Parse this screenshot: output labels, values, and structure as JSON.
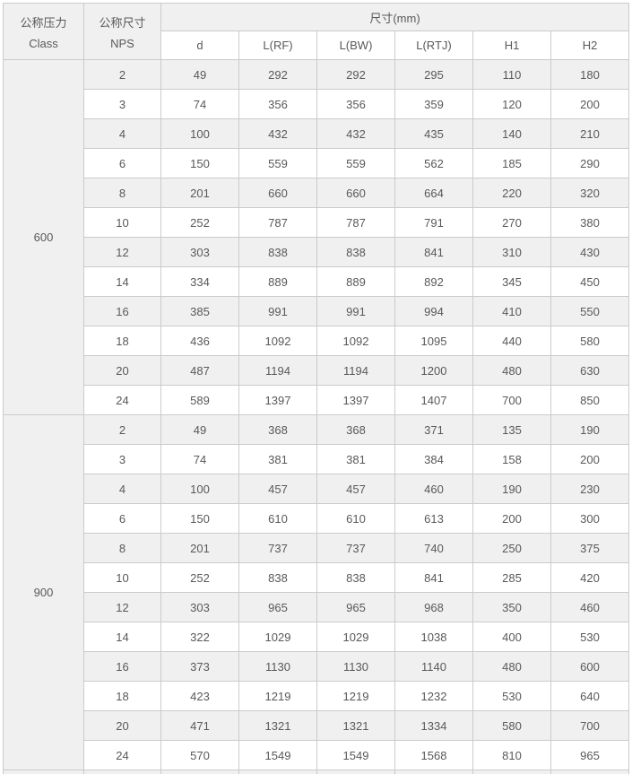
{
  "colors": {
    "header_bg": "#f0f0f0",
    "stripe_bg": "#f0f0f0",
    "inner_border": "#cbcbcb",
    "outer_border": "#a8a8a8",
    "text": "#58595b"
  },
  "table": {
    "header": {
      "pressure_cn": "公称压力",
      "pressure_en": "Class",
      "size_cn": "公称尺寸",
      "size_en": "NPS",
      "dims_title": "尺寸(mm)",
      "sub_columns": [
        "d",
        "L(RF)",
        "L(BW)",
        "L(RTJ)",
        "H1",
        "H2"
      ]
    },
    "sections": [
      {
        "class_label": "600",
        "rows": [
          [
            "2",
            "49",
            "292",
            "292",
            "295",
            "110",
            "180"
          ],
          [
            "3",
            "74",
            "356",
            "356",
            "359",
            "120",
            "200"
          ],
          [
            "4",
            "100",
            "432",
            "432",
            "435",
            "140",
            "210"
          ],
          [
            "6",
            "150",
            "559",
            "559",
            "562",
            "185",
            "290"
          ],
          [
            "8",
            "201",
            "660",
            "660",
            "664",
            "220",
            "320"
          ],
          [
            "10",
            "252",
            "787",
            "787",
            "791",
            "270",
            "380"
          ],
          [
            "12",
            "303",
            "838",
            "838",
            "841",
            "310",
            "430"
          ],
          [
            "14",
            "334",
            "889",
            "889",
            "892",
            "345",
            "450"
          ],
          [
            "16",
            "385",
            "991",
            "991",
            "994",
            "410",
            "550"
          ],
          [
            "18",
            "436",
            "1092",
            "1092",
            "1095",
            "440",
            "580"
          ],
          [
            "20",
            "487",
            "1194",
            "1194",
            "1200",
            "480",
            "630"
          ],
          [
            "24",
            "589",
            "1397",
            "1397",
            "1407",
            "700",
            "850"
          ]
        ]
      },
      {
        "class_label": "900",
        "rows": [
          [
            "2",
            "49",
            "368",
            "368",
            "371",
            "135",
            "190"
          ],
          [
            "3",
            "74",
            "381",
            "381",
            "384",
            "158",
            "200"
          ],
          [
            "4",
            "100",
            "457",
            "457",
            "460",
            "190",
            "230"
          ],
          [
            "6",
            "150",
            "610",
            "610",
            "613",
            "200",
            "300"
          ],
          [
            "8",
            "201",
            "737",
            "737",
            "740",
            "250",
            "375"
          ],
          [
            "10",
            "252",
            "838",
            "838",
            "841",
            "285",
            "420"
          ],
          [
            "12",
            "303",
            "965",
            "965",
            "968",
            "350",
            "460"
          ],
          [
            "14",
            "322",
            "1029",
            "1029",
            "1038",
            "400",
            "530"
          ],
          [
            "16",
            "373",
            "1130",
            "1130",
            "1140",
            "480",
            "600"
          ],
          [
            "18",
            "423",
            "1219",
            "1219",
            "1232",
            "530",
            "640"
          ],
          [
            "20",
            "471",
            "1321",
            "1321",
            "1334",
            "580",
            "700"
          ],
          [
            "24",
            "570",
            "1549",
            "1549",
            "1568",
            "810",
            "965"
          ]
        ]
      }
    ]
  }
}
